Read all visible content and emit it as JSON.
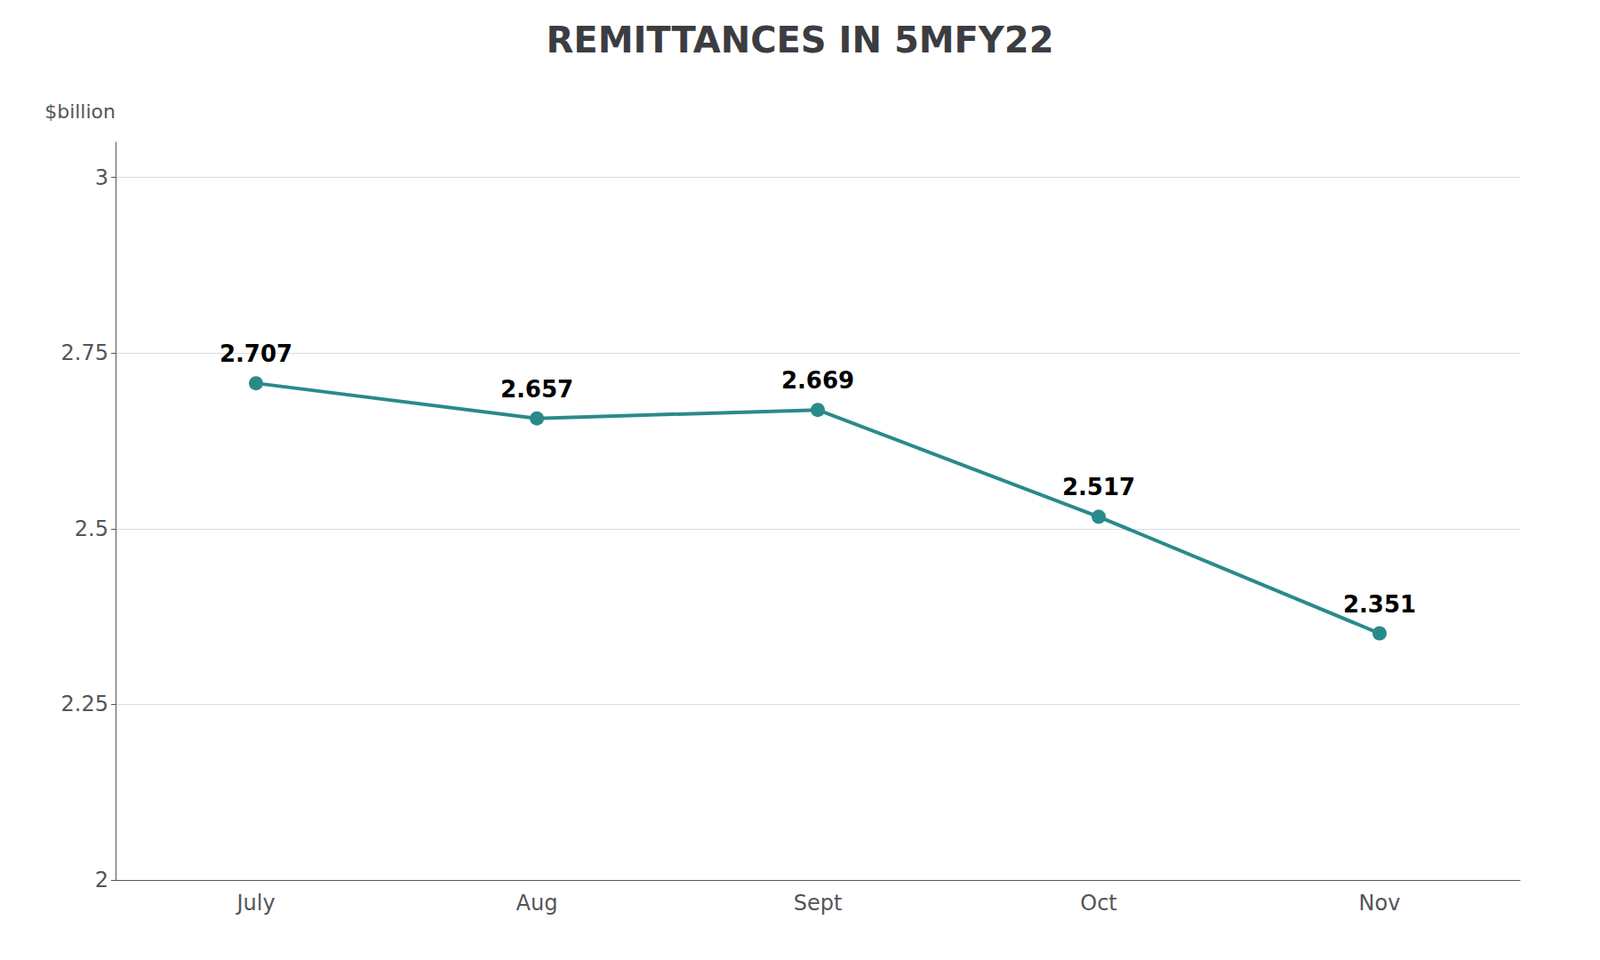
{
  "chart_data": {
    "type": "line",
    "title": "REMITTANCES IN 5MFY22",
    "ylabel": "$billion",
    "categories": [
      "July",
      "Aug",
      "Sept",
      "Oct",
      "Nov"
    ],
    "values": [
      2.707,
      2.657,
      2.669,
      2.517,
      2.351
    ],
    "color": "#2a8a8a",
    "marker": "circle",
    "ylim": [
      2.0,
      3.05
    ],
    "yticks": [
      2.0,
      2.25,
      2.5,
      2.75,
      3.0
    ],
    "grid": true,
    "data_labels": true
  }
}
